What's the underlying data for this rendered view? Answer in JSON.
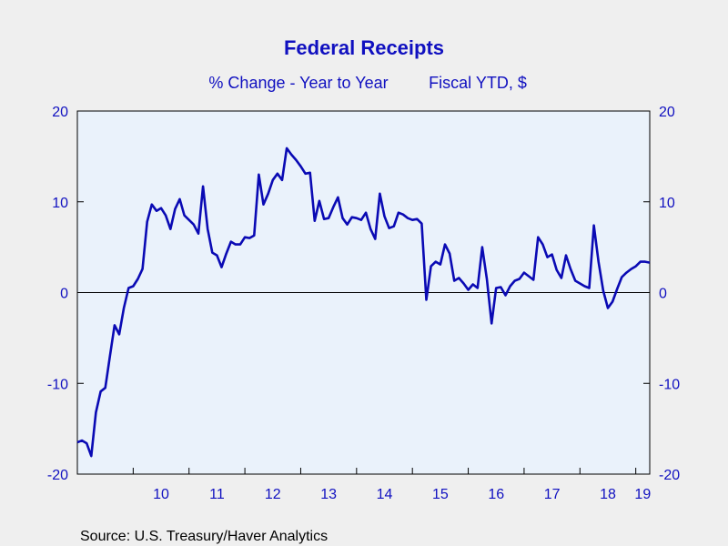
{
  "chart_data": {
    "type": "line",
    "title": "Federal Receipts",
    "subtitle_left": "% Change - Year to Year",
    "subtitle_right": "Fiscal YTD, $",
    "source": "Source:  U.S. Treasury/Haver Analytics",
    "ylim": [
      -20,
      20
    ],
    "yticks": [
      20,
      10,
      0,
      -10,
      -20
    ],
    "yticks_right": [
      20,
      10,
      0,
      -10,
      -20
    ],
    "xlim": [
      2009.0,
      2019.25
    ],
    "xtick_labels": [
      "10",
      "11",
      "12",
      "13",
      "14",
      "15",
      "16",
      "17",
      "18",
      "19"
    ],
    "colors": {
      "line": "#0a0ab4",
      "plot_bg": "#eaf2fb",
      "text": "#1010c0",
      "zero_line": "#000000"
    },
    "series": [
      {
        "x": [
          2009.0,
          2009.083,
          2009.167,
          2009.25,
          2009.333,
          2009.417,
          2009.5,
          2009.583,
          2009.667,
          2009.75,
          2009.833,
          2009.917,
          2010.0,
          2010.083,
          2010.167,
          2010.25,
          2010.333,
          2010.417,
          2010.5,
          2010.583,
          2010.667,
          2010.75,
          2010.833,
          2010.917,
          2011.0,
          2011.083,
          2011.167,
          2011.25,
          2011.333,
          2011.417,
          2011.5,
          2011.583,
          2011.667,
          2011.75,
          2011.833,
          2011.917,
          2012.0,
          2012.083,
          2012.167,
          2012.25,
          2012.333,
          2012.417,
          2012.5,
          2012.583,
          2012.667,
          2012.75,
          2012.833,
          2012.917,
          2013.0,
          2013.083,
          2013.167,
          2013.25,
          2013.333,
          2013.417,
          2013.5,
          2013.583,
          2013.667,
          2013.75,
          2013.833,
          2013.917,
          2014.0,
          2014.083,
          2014.167,
          2014.25,
          2014.333,
          2014.417,
          2014.5,
          2014.583,
          2014.667,
          2014.75,
          2014.833,
          2014.917,
          2015.0,
          2015.083,
          2015.167,
          2015.25,
          2015.333,
          2015.417,
          2015.5,
          2015.583,
          2015.667,
          2015.75,
          2015.833,
          2015.917,
          2016.0,
          2016.083,
          2016.167,
          2016.25,
          2016.333,
          2016.417,
          2016.5,
          2016.583,
          2016.667,
          2016.75,
          2016.833,
          2016.917,
          2017.0,
          2017.083,
          2017.167,
          2017.25,
          2017.333,
          2017.417,
          2017.5,
          2017.583,
          2017.667,
          2017.75,
          2017.833,
          2017.917,
          2018.0,
          2018.083,
          2018.167,
          2018.25,
          2018.333,
          2018.417,
          2018.5,
          2018.583,
          2018.667,
          2018.75,
          2018.833,
          2018.917,
          2019.0,
          2019.083,
          2019.167,
          2019.25
        ],
        "y": [
          -16.5,
          -16.3,
          -16.6,
          -18.0,
          -13.2,
          -10.9,
          -10.5,
          -7.0,
          -3.6,
          -4.6,
          -1.7,
          0.5,
          0.7,
          1.5,
          2.6,
          7.8,
          9.7,
          9.0,
          9.3,
          8.5,
          7.0,
          9.2,
          10.3,
          8.5,
          8.0,
          7.5,
          6.5,
          11.7,
          7.0,
          4.4,
          4.1,
          2.8,
          4.3,
          5.6,
          5.3,
          5.3,
          6.1,
          6.0,
          6.3,
          13.0,
          9.7,
          10.9,
          12.4,
          13.1,
          12.4,
          15.9,
          15.2,
          14.6,
          13.9,
          13.1,
          13.2,
          7.9,
          10.1,
          8.1,
          8.2,
          9.4,
          10.5,
          8.2,
          7.5,
          8.3,
          8.2,
          8.0,
          8.8,
          7.0,
          5.9,
          10.9,
          8.4,
          7.1,
          7.3,
          8.8,
          8.6,
          8.2,
          8.0,
          8.1,
          7.6,
          -0.8,
          2.9,
          3.4,
          3.1,
          5.3,
          4.3,
          1.3,
          1.6,
          1.0,
          0.3,
          0.9,
          0.5,
          5.0,
          1.5,
          -3.4,
          0.5,
          0.6,
          -0.3,
          0.7,
          1.3,
          1.5,
          2.2,
          1.8,
          1.4,
          6.1,
          5.3,
          3.9,
          4.2,
          2.5,
          1.6,
          4.1,
          2.6,
          1.3,
          1.0,
          0.7,
          0.5,
          7.4,
          3.4,
          0.2,
          -1.7,
          -1.0,
          0.4,
          1.7,
          2.2,
          2.6,
          2.9,
          3.4,
          3.4,
          3.3
        ]
      }
    ]
  }
}
